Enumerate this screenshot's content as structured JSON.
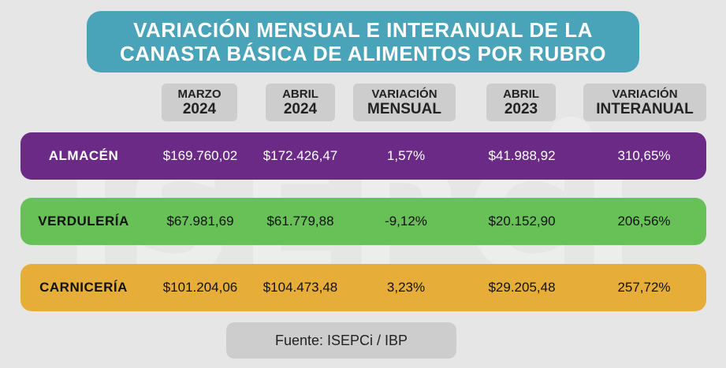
{
  "watermark": "ISEPCi",
  "title": {
    "line1": "VARIACIÓN MENSUAL E INTERANUAL DE LA",
    "line2": "CANASTA BÁSICA DE ALIMENTOS POR RUBRO"
  },
  "columns": [
    {
      "line1": "MARZO",
      "line2": "2024"
    },
    {
      "line1": "ABRIL",
      "line2": "2024"
    },
    {
      "line1": "VARIACIÓN",
      "line2": "MENSUAL"
    },
    {
      "line1": "ABRIL",
      "line2": "2023"
    },
    {
      "line1": "VARIACIÓN",
      "line2": "INTERANUAL"
    }
  ],
  "rows": [
    {
      "category": "ALMACÉN",
      "values": [
        "$169.760,02",
        "$172.426,47",
        "1,57%",
        "$41.988,92",
        "310,65%"
      ],
      "color": "#6a2a86",
      "text_color": "#ffffff"
    },
    {
      "category": "VERDULERÍA",
      "values": [
        "$67.981,69",
        "$61.779,88",
        "-9,12%",
        "$20.152,90",
        "206,56%"
      ],
      "color": "#68c157",
      "text_color": "#111111"
    },
    {
      "category": "CARNICERÍA",
      "values": [
        "$101.204,06",
        "$104.473,48",
        "3,23%",
        "$29.205,48",
        "257,72%"
      ],
      "color": "#e6ae38",
      "text_color": "#111111"
    }
  ],
  "source": "Fuente: ISEPCi / IBP"
}
